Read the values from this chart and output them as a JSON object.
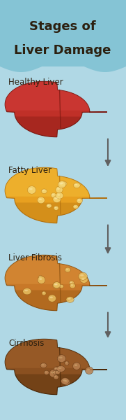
{
  "title_line1": "Stages of",
  "title_line2": "Liver Damage",
  "title_bg_color": "#85c4d5",
  "bg_color": "#b0d8e5",
  "title_text_color": "#2c2010",
  "stages": [
    {
      "label": "Healthy Liver",
      "color_main": "#c03028",
      "color_highlight": "#d84040",
      "color_dark": "#7a1810",
      "color_mid": "#a82820",
      "has_spots": false,
      "spot_color": null,
      "spot_light": null
    },
    {
      "label": "Fatty Liver",
      "color_main": "#e8a020",
      "color_highlight": "#f5c840",
      "color_dark": "#b07010",
      "color_mid": "#c88818",
      "has_spots": true,
      "spot_color": "#f5d878",
      "spot_light": "#faeaaa"
    },
    {
      "label": "Liver Fibrosis",
      "color_main": "#c87828",
      "color_highlight": "#e09840",
      "color_dark": "#8a5010",
      "color_mid": "#a86018",
      "has_spots": true,
      "spot_color": "#e8c060",
      "spot_light": "#f5dca0"
    },
    {
      "label": "Cirrhosis",
      "color_main": "#8a5020",
      "color_highlight": "#aa6830",
      "color_dark": "#4a2808",
      "color_mid": "#6a3810",
      "has_spots": true,
      "spot_color": "#b88050",
      "spot_light": "#d0a870"
    }
  ],
  "label_text_color": "#2c2010",
  "label_fontsize": 8.5,
  "title_fontsize": 13,
  "arrow_color": "#606060"
}
